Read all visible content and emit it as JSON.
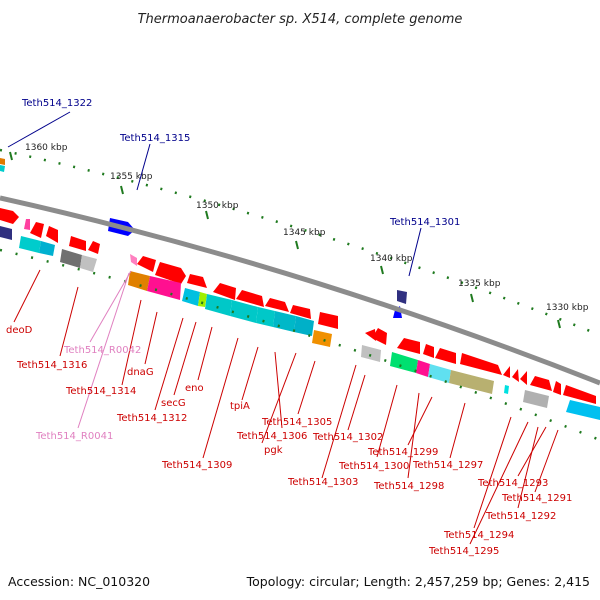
{
  "title": "Thermoanaerobacter sp. X514, complete genome",
  "footer": {
    "accession": "Accession: NC_010320",
    "info": "Topology: circular; Length: 2,457,259 bp; Genes: 2,415"
  },
  "colors": {
    "backbone": "#8c8c8c",
    "tick": "#1f7a1f",
    "label_blue": "#00008b",
    "label_red": "#cc0000",
    "label_pink": "#e080c0",
    "gene_red": "#ff0000",
    "gene_blue": "#0000ff"
  },
  "kbp_markers": [
    "1360 kbp",
    "1355 kbp",
    "1350 kbp",
    "1345 kbp",
    "1340 kbp",
    "1335 kbp",
    "1330 kbp"
  ],
  "labels": {
    "blue": [
      "Teth514_1322",
      "Teth514_1315",
      "Teth514_1301"
    ],
    "red": [
      "deoD",
      "Teth514_1316",
      "dnaG",
      "Teth514_1314",
      "eno",
      "secG",
      "Teth514_1312",
      "tpiA",
      "Teth514_1309",
      "Teth514_1305",
      "pgk",
      "Teth514_1306",
      "Teth514_1302",
      "Teth514_1303",
      "Teth514_1299",
      "Teth514_1300",
      "Teth514_1297",
      "Teth514_1298",
      "Teth514_1293",
      "Teth514_1291",
      "Teth514_1292",
      "Teth514_1294",
      "Teth514_1295"
    ],
    "pink": [
      "Teth514_R0042",
      "Teth514_R0041"
    ]
  }
}
